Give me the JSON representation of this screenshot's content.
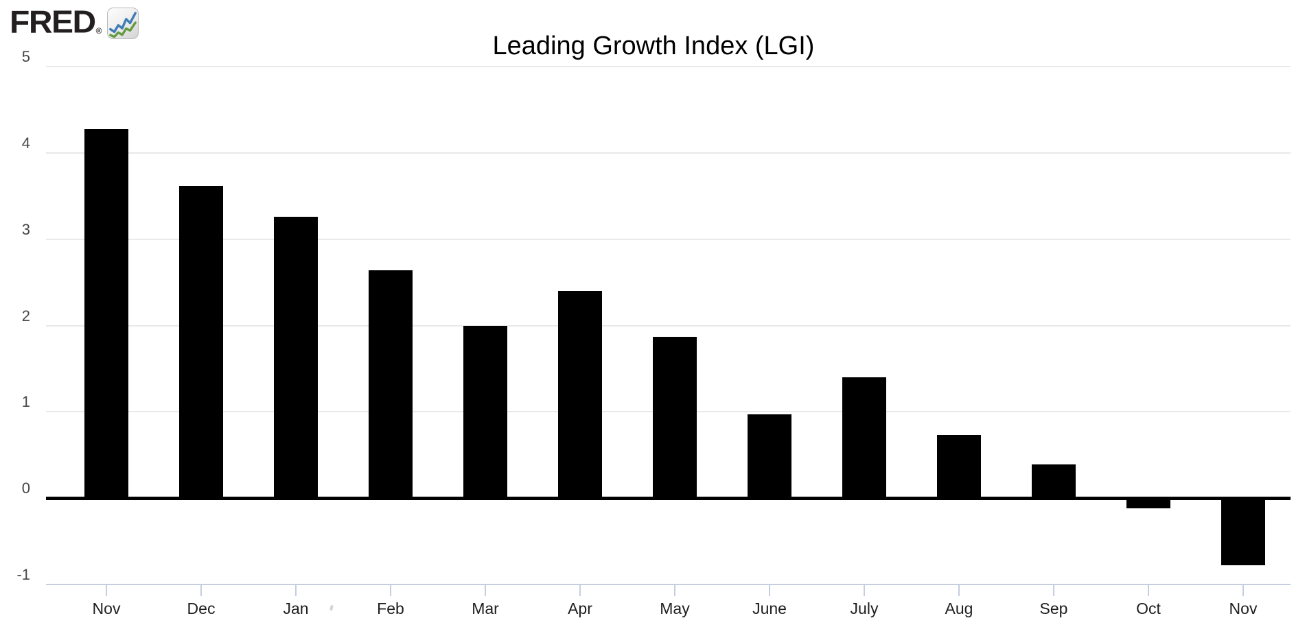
{
  "logo": {
    "brand": "FRED",
    "registered": "®",
    "icon": "line-chart-icon"
  },
  "chart_data": {
    "type": "bar",
    "title": "Leading Growth Index (LGI)",
    "series_name": "Leading Growth Index (LGI)",
    "categories": [
      "Nov",
      "Dec",
      "Jan",
      "Feb",
      "Mar",
      "Apr",
      "May",
      "June",
      "July",
      "Aug",
      "Sep",
      "Oct",
      "Nov"
    ],
    "values": [
      4.28,
      3.62,
      3.26,
      2.64,
      2.0,
      2.4,
      1.87,
      0.97,
      1.4,
      0.73,
      0.39,
      -0.12,
      -0.78
    ],
    "xlabel": "",
    "ylabel": "",
    "ylim": [
      -1,
      5
    ],
    "yticks": [
      5,
      4,
      3,
      2,
      1,
      0,
      -1
    ],
    "grid": true,
    "legend": false,
    "bar_color": "#000000",
    "zero_line_color": "#000000",
    "gridline_color": "#e9e9e9",
    "axis_line_color": "#c4cedf",
    "y_label_color": "#474747",
    "x_label_color": "#1e1e1e"
  }
}
